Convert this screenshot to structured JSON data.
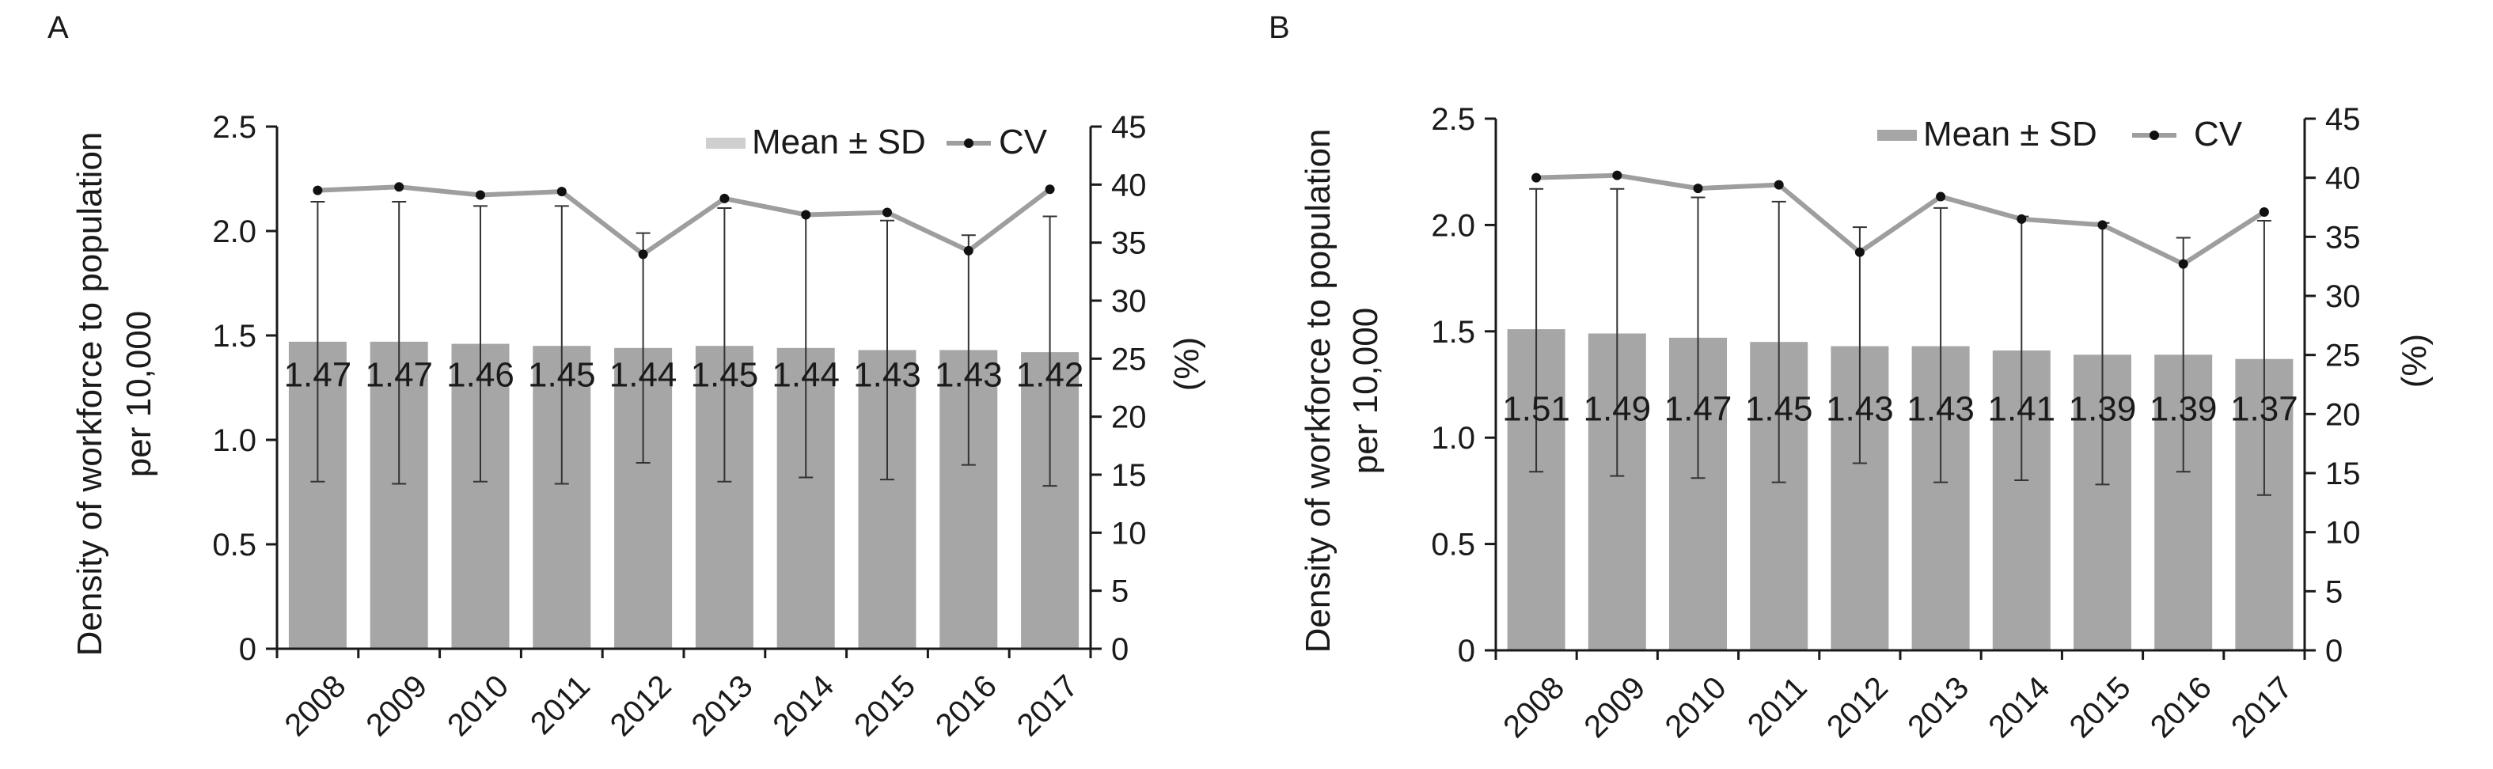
{
  "colors": {
    "bar": "#a6a6a6",
    "cv_line": "#9e9e9e",
    "marker": "#111111",
    "axis": "#1a1a1a"
  },
  "chart_data": [
    {
      "panel": "A",
      "type": "bar",
      "categories": [
        "2008",
        "2009",
        "2010",
        "2011",
        "2012",
        "2013",
        "2014",
        "2015",
        "2016",
        "2017"
      ],
      "ylabel": "Density of workforce to population per 10,000",
      "ylabel_lines": [
        "Density of workforce to population",
        "per 10,000"
      ],
      "y2label": "(%)",
      "ylim": [
        0,
        2.5
      ],
      "y2lim": [
        0,
        45
      ],
      "yticks": [
        "0",
        "0.5",
        "1.0",
        "1.5",
        "2.0",
        "2.5"
      ],
      "y2ticks": [
        "0",
        "5",
        "10",
        "15",
        "20",
        "25",
        "30",
        "35",
        "40",
        "45"
      ],
      "legend": [
        "Mean ± SD",
        "CV"
      ],
      "legend_placement": "top-right",
      "series": [
        {
          "name": "Mean ± SD",
          "kind": "bar",
          "values": [
            1.47,
            1.47,
            1.46,
            1.45,
            1.44,
            1.45,
            1.44,
            1.43,
            1.43,
            1.42
          ],
          "labels": [
            "1.47",
            "1.47",
            "1.46",
            "1.45",
            "1.44",
            "1.45",
            "1.44",
            "1.43",
            "1.43",
            "1.42"
          ],
          "err_low": [
            0.8,
            0.79,
            0.8,
            0.79,
            0.89,
            0.8,
            0.82,
            0.81,
            0.88,
            0.78
          ],
          "err_high": [
            2.14,
            2.14,
            2.12,
            2.12,
            1.99,
            2.11,
            2.08,
            2.05,
            1.98,
            2.07
          ]
        },
        {
          "name": "CV",
          "kind": "line",
          "axis": "right",
          "values": [
            39.5,
            39.8,
            39.1,
            39.4,
            34.0,
            38.8,
            37.4,
            37.6,
            34.3,
            39.6
          ]
        }
      ]
    },
    {
      "panel": "B",
      "type": "bar",
      "categories": [
        "2008",
        "2009",
        "2010",
        "2011",
        "2012",
        "2013",
        "2014",
        "2015",
        "2016",
        "2017"
      ],
      "ylabel": "Density of workforce to population per 10,000",
      "ylabel_lines": [
        "Density of workforce to population",
        "per 10,000"
      ],
      "y2label": "(%)",
      "ylim": [
        0,
        2.5
      ],
      "y2lim": [
        0,
        45
      ],
      "yticks": [
        "0",
        "0.5",
        "1.0",
        "1.5",
        "2.0",
        "2.5"
      ],
      "y2ticks": [
        "0",
        "5",
        "10",
        "15",
        "20",
        "25",
        "30",
        "35",
        "40",
        "45"
      ],
      "legend": [
        "Mean ± SD",
        "CV"
      ],
      "legend_placement": "top-right",
      "series": [
        {
          "name": "Mean ± SD",
          "kind": "bar",
          "values": [
            1.51,
            1.49,
            1.47,
            1.45,
            1.43,
            1.43,
            1.41,
            1.39,
            1.39,
            1.37
          ],
          "labels": [
            "1.51",
            "1.49",
            "1.47",
            "1.45",
            "1.43",
            "1.43",
            "1.41",
            "1.39",
            "1.39",
            "1.37"
          ],
          "err_low": [
            0.84,
            0.82,
            0.81,
            0.79,
            0.88,
            0.79,
            0.8,
            0.78,
            0.84,
            0.73
          ],
          "err_high": [
            2.17,
            2.17,
            2.13,
            2.11,
            1.99,
            2.08,
            2.04,
            2.01,
            1.94,
            2.02
          ]
        },
        {
          "name": "CV",
          "kind": "line",
          "axis": "right",
          "values": [
            40.0,
            40.2,
            39.1,
            39.4,
            33.7,
            38.4,
            36.5,
            36.0,
            32.7,
            37.1
          ]
        }
      ]
    }
  ]
}
